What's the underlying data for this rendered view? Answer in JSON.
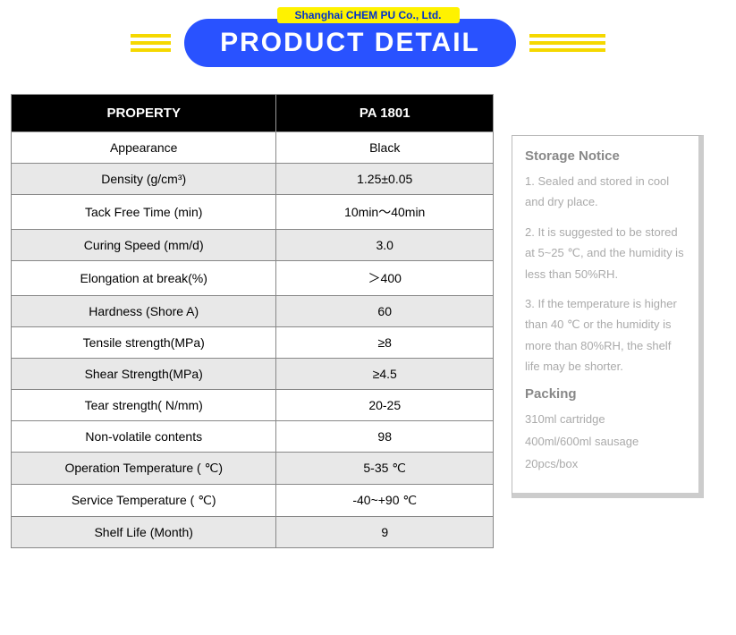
{
  "header": {
    "company": "Shanghai CHEM PU Co., Ltd.",
    "title": "PRODUCT DETAIL",
    "stripe_colors": [
      "#f5d800",
      "#f5d800",
      "#f5d800"
    ],
    "badge_bg": "#2952ff",
    "badge_color": "#ffffff",
    "company_bg": "#fff200",
    "company_color": "#0033cc"
  },
  "table": {
    "columns": [
      "PROPERTY",
      "PA 1801"
    ],
    "header_bg": "#000000",
    "header_color": "#ffffff",
    "row_alt_bg": "#e8e8e8",
    "row_bg": "#ffffff",
    "border_color": "#888888",
    "rows": [
      {
        "property": "Appearance",
        "value": "Black",
        "shade": "white"
      },
      {
        "property": "Density (g/cm³)",
        "value": "1.25±0.05",
        "shade": "grey"
      },
      {
        "property": "Tack Free Time (min)",
        "value": "10min～40min",
        "shade": "white"
      },
      {
        "property": "Curing Speed (mm/d)",
        "value": "3.0",
        "shade": "grey"
      },
      {
        "property": "Elongation at break(%)",
        "value": "＞400",
        "shade": "white"
      },
      {
        "property": "Hardness (Shore A)",
        "value": "60",
        "shade": "grey"
      },
      {
        "property": "Tensile strength(MPa)",
        "value": "≥8",
        "shade": "white"
      },
      {
        "property": "Shear Strength(MPa)",
        "value": "≥4.5",
        "shade": "grey"
      },
      {
        "property": "Tear strength( N/mm)",
        "value": "20-25",
        "shade": "white"
      },
      {
        "property": "Non-volatile contents",
        "value": "98",
        "shade": "white"
      },
      {
        "property": "Operation Temperature ( ℃)",
        "value": "5-35 ℃",
        "shade": "grey"
      },
      {
        "property": "Service Temperature ( ℃)",
        "value": "-40~+90 ℃",
        "shade": "white"
      },
      {
        "property": "Shelf Life (Month)",
        "value": "9",
        "shade": "grey"
      }
    ]
  },
  "sidebar": {
    "storage_title": "Storage Notice",
    "storage_items": [
      "1.   Sealed and stored in cool and dry place.",
      "2.    It is suggested to be stored at 5~25 ℃, and the humidity is less than 50%RH.",
      "3.   If the temperature is higher than 40 ℃ or the humidity is more than 80%RH, the shelf life may be shorter."
    ],
    "packing_title": "Packing",
    "packing_items": [
      "310ml cartridge",
      "400ml/600ml sausage",
      "20pcs/box"
    ],
    "text_color": "#aaaaaa",
    "title_color": "#888888"
  }
}
